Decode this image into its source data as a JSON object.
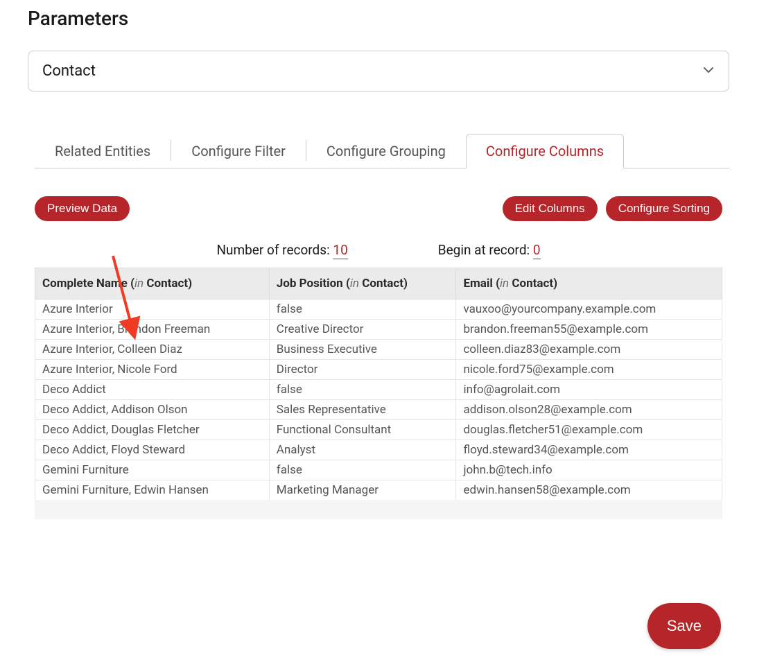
{
  "colors": {
    "accent": "#b5252a",
    "text_primary": "#1a1a1a",
    "text_secondary": "#555555",
    "border": "#cccccc",
    "table_header_bg": "#ebebeb",
    "table_border": "#e5e5e5",
    "footer_pad_bg": "#f5f5f5",
    "background": "#ffffff"
  },
  "header": {
    "title": "Parameters"
  },
  "entity_select": {
    "value": "Contact"
  },
  "tabs": {
    "items": [
      {
        "label": "Related Entities",
        "active": false
      },
      {
        "label": "Configure Filter",
        "active": false
      },
      {
        "label": "Configure Grouping",
        "active": false
      },
      {
        "label": "Configure Columns",
        "active": true
      }
    ]
  },
  "buttons": {
    "preview": "Preview Data",
    "edit_columns": "Edit Columns",
    "configure_sorting": "Configure Sorting",
    "save": "Save"
  },
  "records": {
    "count_label": "Number of records: ",
    "count_value": "10",
    "begin_label": "Begin at record: ",
    "begin_value": "0"
  },
  "table": {
    "in_keyword": "in",
    "entity_name": "Contact",
    "columns": [
      {
        "title": "Complete Name"
      },
      {
        "title": "Job Position"
      },
      {
        "title": "Email"
      }
    ],
    "rows": [
      [
        "Azure Interior",
        "false",
        "vauxoo@yourcompany.example.com"
      ],
      [
        "Azure Interior, Brandon Freeman",
        "Creative Director",
        "brandon.freeman55@example.com"
      ],
      [
        "Azure Interior, Colleen Diaz",
        "Business Executive",
        "colleen.diaz83@example.com"
      ],
      [
        "Azure Interior, Nicole Ford",
        "Director",
        "nicole.ford75@example.com"
      ],
      [
        "Deco Addict",
        "false",
        "info@agrolait.com"
      ],
      [
        "Deco Addict, Addison Olson",
        "Sales Representative",
        "addison.olson28@example.com"
      ],
      [
        "Deco Addict, Douglas Fletcher",
        "Functional Consultant",
        "douglas.fletcher51@example.com"
      ],
      [
        "Deco Addict, Floyd Steward",
        "Analyst",
        "floyd.steward34@example.com"
      ],
      [
        "Gemini Furniture",
        "false",
        "john.b@tech.info"
      ],
      [
        "Gemini Furniture, Edwin Hansen",
        "Marketing Manager",
        "edwin.hansen58@example.com"
      ]
    ]
  },
  "annotation": {
    "arrow_color": "#ef3a24"
  }
}
